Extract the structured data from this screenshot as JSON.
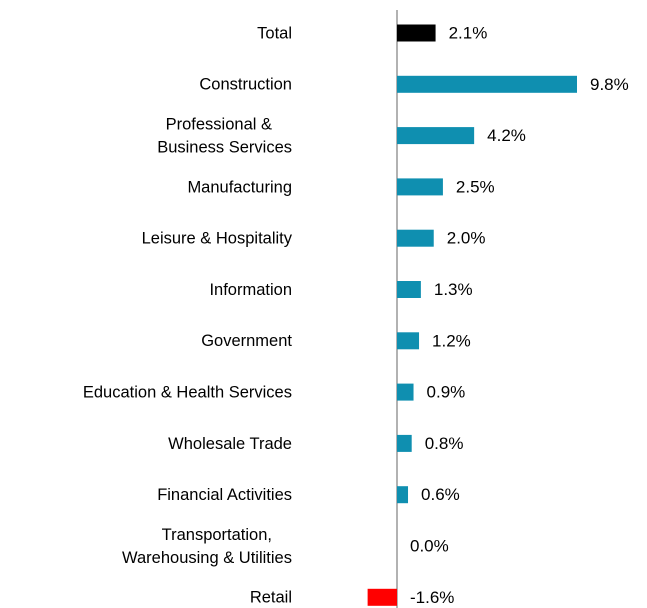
{
  "chart_data": {
    "type": "bar",
    "orientation": "horizontal",
    "categories": [
      "Total",
      "Construction",
      [
        "Professional &",
        "Business Services"
      ],
      "Manufacturing",
      "Leisure & Hospitality",
      "Information",
      "Government",
      "Education & Health Services",
      "Wholesale Trade",
      "Financial Activities",
      [
        "Transportation,",
        "Warehousing & Utilities"
      ],
      "Retail"
    ],
    "values": [
      2.1,
      9.8,
      4.2,
      2.5,
      2.0,
      1.3,
      1.2,
      0.9,
      0.8,
      0.6,
      0.0,
      -1.6
    ],
    "value_labels": [
      "2.1%",
      "9.8%",
      "4.2%",
      "2.5%",
      "2.0%",
      "1.3%",
      "1.2%",
      "0.9%",
      "0.8%",
      "0.6%",
      "0.0%",
      "-1.6%"
    ],
    "colors": [
      "#000000",
      "#0f8fb0",
      "#0f8fb0",
      "#0f8fb0",
      "#0f8fb0",
      "#0f8fb0",
      "#0f8fb0",
      "#0f8fb0",
      "#0f8fb0",
      "#0f8fb0",
      "#0f8fb0",
      "#ff0000"
    ]
  }
}
